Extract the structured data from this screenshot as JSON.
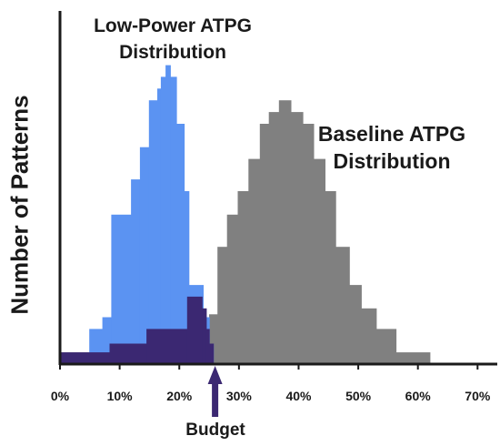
{
  "chart_data": {
    "type": "bar",
    "xlabel": "",
    "ylabel": "Number of Patterns",
    "x_tick_labels": [
      "0%",
      "10%",
      "20%",
      "30%",
      "40%",
      "50%",
      "60%",
      "70%"
    ],
    "x_ticks": [
      0,
      10,
      20,
      30,
      40,
      50,
      60,
      70
    ],
    "xlim": [
      0,
      73
    ],
    "ylim": [
      0,
      100
    ],
    "grid": false,
    "bin_edges": [
      0,
      2.5,
      5,
      7.5,
      10,
      12.5,
      15,
      17.5,
      20,
      22.5,
      25,
      27.5,
      30,
      32.5,
      35,
      37.5,
      40,
      42.5,
      45,
      47.5,
      50,
      52.5,
      55,
      57.5,
      60,
      62.5
    ],
    "series": [
      {
        "name": "Baseline ATPG Distribution",
        "color": "#808080",
        "bins": [
          {
            "x0": 0.0,
            "x1": 2.7,
            "y": 4
          },
          {
            "x0": 2.7,
            "x1": 5.5,
            "y": 4
          },
          {
            "x0": 5.5,
            "x1": 8.3,
            "y": 4
          },
          {
            "x0": 8.3,
            "x1": 16.6,
            "y": 7
          },
          {
            "x0": 16.6,
            "x1": 25.0,
            "y": 12
          },
          {
            "x0": 25.0,
            "x1": 26.4,
            "y": 17
          },
          {
            "x0": 26.4,
            "x1": 28.0,
            "y": 40
          },
          {
            "x0": 28.0,
            "x1": 29.8,
            "y": 51
          },
          {
            "x0": 29.8,
            "x1": 31.6,
            "y": 59
          },
          {
            "x0": 31.6,
            "x1": 33.5,
            "y": 70
          },
          {
            "x0": 33.5,
            "x1": 35.0,
            "y": 82
          },
          {
            "x0": 35.0,
            "x1": 36.7,
            "y": 86
          },
          {
            "x0": 36.7,
            "x1": 38.7,
            "y": 90
          },
          {
            "x0": 38.7,
            "x1": 40.7,
            "y": 86
          },
          {
            "x0": 40.7,
            "x1": 42.5,
            "y": 82
          },
          {
            "x0": 42.5,
            "x1": 44.4,
            "y": 70
          },
          {
            "x0": 44.4,
            "x1": 46.2,
            "y": 59
          },
          {
            "x0": 46.2,
            "x1": 48.5,
            "y": 40
          },
          {
            "x0": 48.5,
            "x1": 50.5,
            "y": 27
          },
          {
            "x0": 50.5,
            "x1": 53.0,
            "y": 19
          },
          {
            "x0": 53.0,
            "x1": 56.3,
            "y": 12
          },
          {
            "x0": 56.3,
            "x1": 62.0,
            "y": 4
          }
        ]
      },
      {
        "name": "Low-Power ATPG Distribution",
        "color": "#5b93f2",
        "bins": [
          {
            "x0": 0.0,
            "x1": 4.9,
            "y": 1
          },
          {
            "x0": 4.9,
            "x1": 7.1,
            "y": 12
          },
          {
            "x0": 7.1,
            "x1": 8.6,
            "y": 16
          },
          {
            "x0": 8.6,
            "x1": 11.9,
            "y": 51
          },
          {
            "x0": 11.9,
            "x1": 13.4,
            "y": 63
          },
          {
            "x0": 13.4,
            "x1": 14.9,
            "y": 74
          },
          {
            "x0": 14.9,
            "x1": 16.3,
            "y": 90
          },
          {
            "x0": 16.3,
            "x1": 16.9,
            "y": 94
          },
          {
            "x0": 16.9,
            "x1": 17.7,
            "y": 98
          },
          {
            "x0": 17.7,
            "x1": 18.5,
            "y": 102
          },
          {
            "x0": 18.5,
            "x1": 19.5,
            "y": 98
          },
          {
            "x0": 19.5,
            "x1": 20.8,
            "y": 82
          },
          {
            "x0": 20.8,
            "x1": 21.6,
            "y": 59
          },
          {
            "x0": 21.6,
            "x1": 24.0,
            "y": 27
          },
          {
            "x0": 24.0,
            "x1": 25.0,
            "y": 16
          },
          {
            "x0": 25.0,
            "x1": 25.7,
            "y": 7
          }
        ]
      },
      {
        "name": "Overlap",
        "color": "#3b2872",
        "bins": [
          {
            "x0": 0.0,
            "x1": 8.3,
            "y": 4
          },
          {
            "x0": 8.3,
            "x1": 14.5,
            "y": 7
          },
          {
            "x0": 14.5,
            "x1": 21.3,
            "y": 12
          },
          {
            "x0": 21.3,
            "x1": 23.8,
            "y": 23
          },
          {
            "x0": 23.8,
            "x1": 24.5,
            "y": 19
          },
          {
            "x0": 24.5,
            "x1": 25.0,
            "y": 12
          },
          {
            "x0": 25.0,
            "x1": 25.7,
            "y": 7
          }
        ]
      }
    ],
    "annotations": {
      "low_power_label": [
        "Low-Power ATPG",
        "Distribution"
      ],
      "baseline_label": [
        "Baseline ATPG",
        "Distribution"
      ],
      "budget_label": "Budget",
      "budget_x": 26
    },
    "colors": {
      "axis": "#1a1a1a",
      "arrow": "#3b2872",
      "baseline": "#808080",
      "low_power": "#5b93f2",
      "overlap": "#3b2872"
    }
  }
}
